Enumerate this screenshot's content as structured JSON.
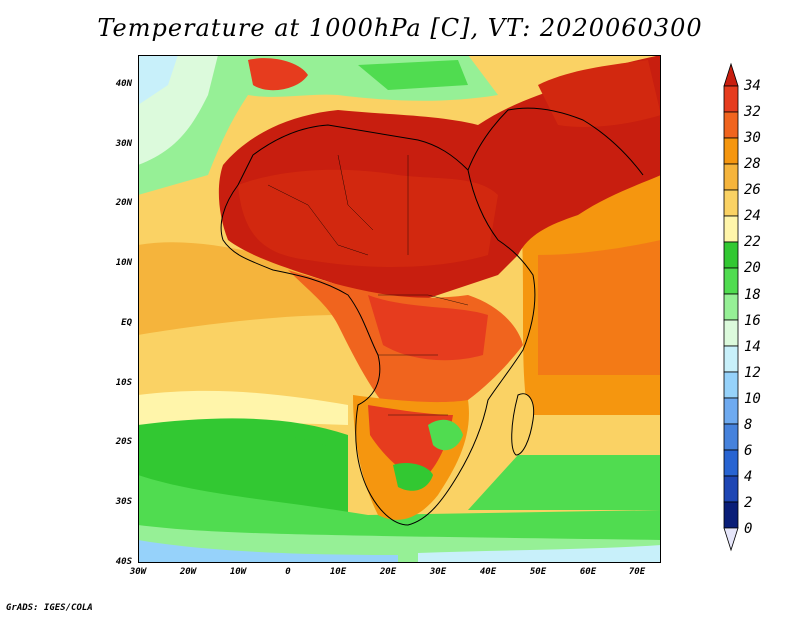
{
  "title": "Temperature at 1000hPa [C], VT: 2020060300",
  "credit": "GrADS: IGES/COLA",
  "y_axis_labels": [
    "40N",
    "30N",
    "20N",
    "10N",
    "EQ",
    "10S",
    "20S",
    "30S",
    "40S"
  ],
  "x_axis_labels": [
    "30W",
    "20W",
    "10W",
    "0",
    "10E",
    "20E",
    "30E",
    "40E",
    "50E",
    "60E",
    "70E"
  ],
  "colorbar": {
    "labels": [
      "34",
      "32",
      "30",
      "28",
      "26",
      "24",
      "22",
      "20",
      "18",
      "16",
      "14",
      "12",
      "10",
      "8",
      "6",
      "4",
      "2",
      "0"
    ],
    "colors_top_to_bottom": [
      "#c81e0f",
      "#e63c1e",
      "#f0641e",
      "#f5960f",
      "#f5b43c",
      "#fad264",
      "#fff5aa",
      "#32c832",
      "#50dc50",
      "#96f096",
      "#dcfadc",
      "#c8f0fa",
      "#96d2fa",
      "#6eaaf0",
      "#4682dc",
      "#2864d2",
      "#1e46b4",
      "#0a1e78",
      "#e6e6fa"
    ]
  },
  "colors": {
    "sea_temperate": "#fad264",
    "sea_warm": "#f5b43c",
    "sea_cool": "#50dc50",
    "land_hot": "#d2280f",
    "coast": "#000000"
  }
}
